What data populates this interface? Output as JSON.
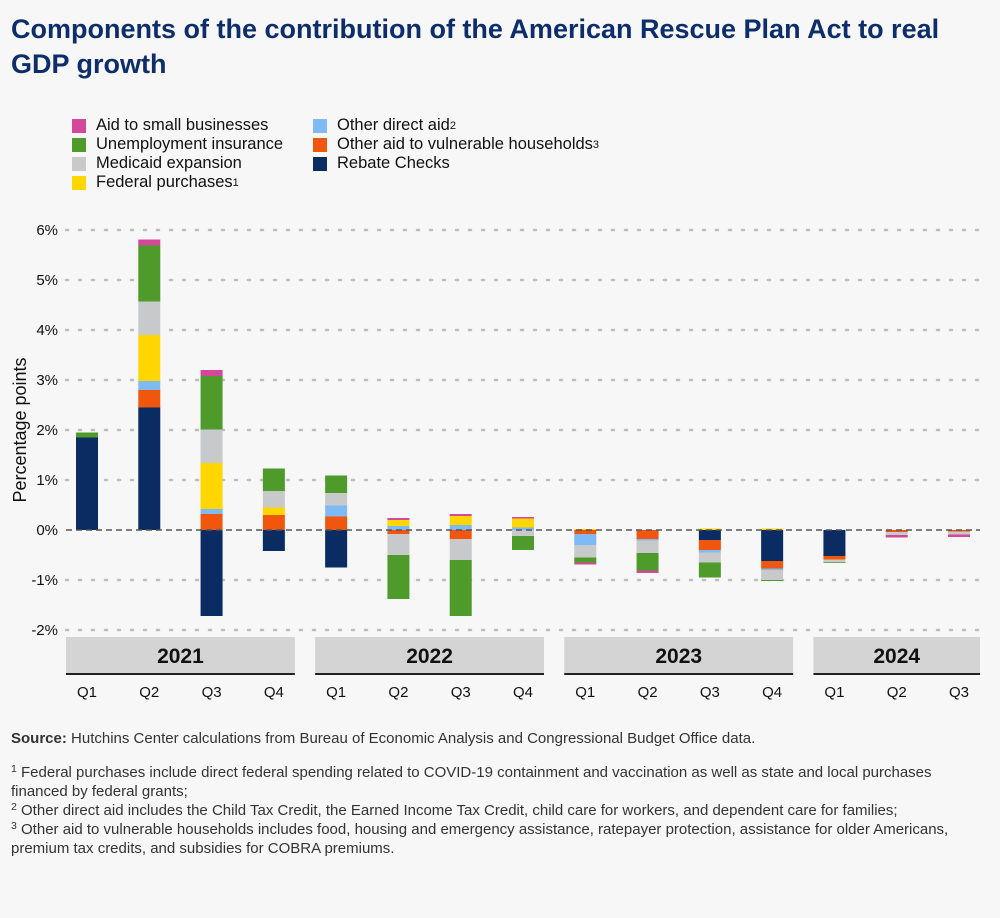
{
  "title": "Components of the contribution of the American Rescue Plan Act to real GDP growth",
  "colors": {
    "aid_small_business": "#d4489b",
    "unemployment": "#4e9a2a",
    "medicaid": "#c7c9ca",
    "federal_purchases": "#ffd600",
    "other_direct": "#7fbaf5",
    "other_vulnerable": "#f0560e",
    "rebate": "#0b2b63",
    "year_band": "#d4d4d4",
    "grid": "#bdbdbd"
  },
  "legend": {
    "left": [
      {
        "key": "aid_small_business",
        "label": "Aid to small businesses",
        "sup": ""
      },
      {
        "key": "unemployment",
        "label": "Unemployment insurance",
        "sup": ""
      },
      {
        "key": "medicaid",
        "label": "Medicaid expansion",
        "sup": ""
      },
      {
        "key": "federal_purchases",
        "label": "Federal purchases",
        "sup": "1"
      }
    ],
    "right": [
      {
        "key": "other_direct",
        "label": "Other direct aid",
        "sup": "2"
      },
      {
        "key": "other_vulnerable",
        "label": "Other aid to vulnerable households",
        "sup": "3"
      },
      {
        "key": "rebate",
        "label": "Rebate Checks",
        "sup": ""
      }
    ]
  },
  "chart_data": {
    "type": "bar",
    "stacked": true,
    "ylabel": "Percentage points",
    "ylim": [
      -2,
      6
    ],
    "yticks": [
      -2,
      -1,
      0,
      1,
      2,
      3,
      4,
      5,
      6
    ],
    "ytick_labels": [
      "-2%",
      "-1%",
      "0%",
      "1%",
      "2%",
      "3%",
      "4%",
      "5%",
      "6%"
    ],
    "grid": "horizontal dotted",
    "categories": [
      "Q1",
      "Q2",
      "Q3",
      "Q4",
      "Q1",
      "Q2",
      "Q3",
      "Q4",
      "Q1",
      "Q2",
      "Q3",
      "Q4",
      "Q1",
      "Q2",
      "Q3"
    ],
    "year_groups": [
      {
        "label": "2021",
        "quarters": 4
      },
      {
        "label": "2022",
        "quarters": 4
      },
      {
        "label": "2023",
        "quarters": 4
      },
      {
        "label": "2024",
        "quarters": 3
      }
    ],
    "series": [
      {
        "key": "rebate",
        "name": "Rebate Checks",
        "values": [
          1.85,
          2.45,
          -1.72,
          -0.42,
          -0.75,
          0.0,
          0.0,
          0.0,
          0.0,
          0.0,
          -0.2,
          -0.62,
          -0.52,
          0.0,
          0.0
        ]
      },
      {
        "key": "other_vulnerable",
        "name": "Other aid to vulnerable households",
        "values": [
          0.0,
          0.35,
          0.32,
          0.3,
          0.27,
          -0.08,
          -0.18,
          0.0,
          -0.08,
          -0.18,
          -0.2,
          -0.15,
          -0.07,
          -0.04,
          -0.03
        ]
      },
      {
        "key": "other_direct",
        "name": "Other direct aid",
        "values": [
          0.0,
          0.18,
          0.1,
          0.0,
          0.22,
          0.08,
          0.1,
          0.05,
          -0.22,
          -0.03,
          -0.05,
          -0.03,
          0.0,
          0.0,
          0.0
        ]
      },
      {
        "key": "federal_purchases",
        "name": "Federal purchases",
        "values": [
          0.0,
          0.92,
          0.92,
          0.15,
          0.0,
          0.12,
          0.18,
          0.18,
          0.02,
          0.0,
          0.03,
          0.03,
          0.0,
          0.0,
          0.0
        ]
      },
      {
        "key": "medicaid",
        "name": "Medicaid expansion",
        "values": [
          0.0,
          0.67,
          0.67,
          0.33,
          0.25,
          -0.42,
          -0.42,
          -0.12,
          -0.25,
          -0.25,
          -0.2,
          -0.2,
          -0.05,
          -0.06,
          -0.06
        ]
      },
      {
        "key": "unemployment",
        "name": "Unemployment insurance",
        "values": [
          0.1,
          1.12,
          1.07,
          0.45,
          0.35,
          -0.88,
          -1.12,
          -0.28,
          -0.1,
          -0.35,
          -0.3,
          -0.02,
          -0.01,
          0.0,
          0.0
        ]
      },
      {
        "key": "aid_small_business",
        "name": "Aid to small businesses",
        "values": [
          0.0,
          0.12,
          0.12,
          0.0,
          0.0,
          0.04,
          0.04,
          0.03,
          -0.04,
          -0.05,
          0.0,
          0.0,
          0.0,
          -0.05,
          -0.05
        ]
      }
    ]
  },
  "notes": {
    "source_label": "Source:",
    "source_text": " Hutchins Center calculations from Bureau of Economic Analysis and Congressional Budget Office data.",
    "footnotes": [
      {
        "num": "1",
        "text": " Federal purchases include direct federal spending related to COVID-19 containment and vaccination as well as state and local purchases financed by federal grants;"
      },
      {
        "num": "2",
        "text": " Other direct aid includes the Child Tax Credit, the Earned Income Tax Credit, child care for workers, and dependent care for families;"
      },
      {
        "num": "3",
        "text": " Other aid to vulnerable households includes food, housing and emergency assistance, ratepayer protection, assistance for older Americans, premium tax credits, and subsidies for COBRA premiums."
      }
    ]
  }
}
